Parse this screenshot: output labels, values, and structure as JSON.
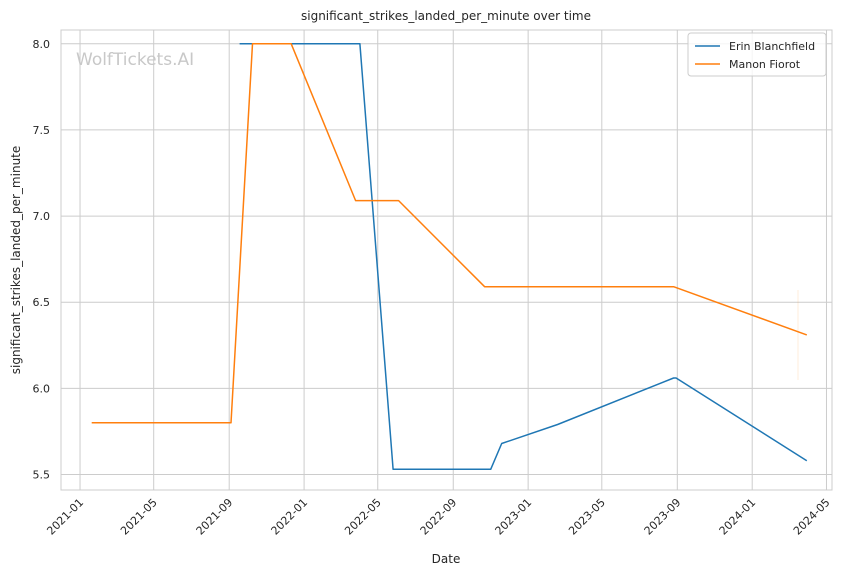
{
  "chart_data": {
    "type": "line",
    "title": "significant_strikes_landed_per_minute over time",
    "xlabel": "Date",
    "ylabel": "significant_strikes_landed_per_minute",
    "watermark": "WolfTickets.AI",
    "xlim": [
      "2020-12-01",
      "2024-05-10"
    ],
    "ylim": [
      5.41,
      8.08
    ],
    "x_ticks": [
      "2021-01",
      "2021-05",
      "2021-09",
      "2022-01",
      "2022-05",
      "2022-09",
      "2023-01",
      "2023-05",
      "2023-09",
      "2024-01",
      "2024-05"
    ],
    "y_ticks": [
      "5.5",
      "6.0",
      "6.5",
      "7.0",
      "7.5",
      "8.0"
    ],
    "grid": true,
    "legend_position": "top-right",
    "series": [
      {
        "name": "Erin Blanchfield",
        "color": "#1f77b4",
        "points": [
          {
            "x": "2021-09-18",
            "y": 8.0
          },
          {
            "x": "2022-04-02",
            "y": 8.0
          },
          {
            "x": "2022-05-26",
            "y": 5.53
          },
          {
            "x": "2022-11-01",
            "y": 5.53
          },
          {
            "x": "2022-11-19",
            "y": 5.68
          },
          {
            "x": "2023-02-18",
            "y": 5.79
          },
          {
            "x": "2023-08-26",
            "y": 6.06
          },
          {
            "x": "2023-08-30",
            "y": 6.06
          },
          {
            "x": "2024-03-30",
            "y": 5.58
          }
        ]
      },
      {
        "name": "Manon Fiorot",
        "color": "#ff7f0e",
        "points": [
          {
            "x": "2021-01-20",
            "y": 5.8
          },
          {
            "x": "2021-09-04",
            "y": 5.8
          },
          {
            "x": "2021-10-09",
            "y": 8.0
          },
          {
            "x": "2021-12-11",
            "y": 8.0
          },
          {
            "x": "2022-03-26",
            "y": 7.09
          },
          {
            "x": "2022-06-04",
            "y": 7.09
          },
          {
            "x": "2022-10-22",
            "y": 6.59
          },
          {
            "x": "2023-08-26",
            "y": 6.59
          },
          {
            "x": "2024-03-30",
            "y": 6.31
          }
        ]
      }
    ]
  }
}
